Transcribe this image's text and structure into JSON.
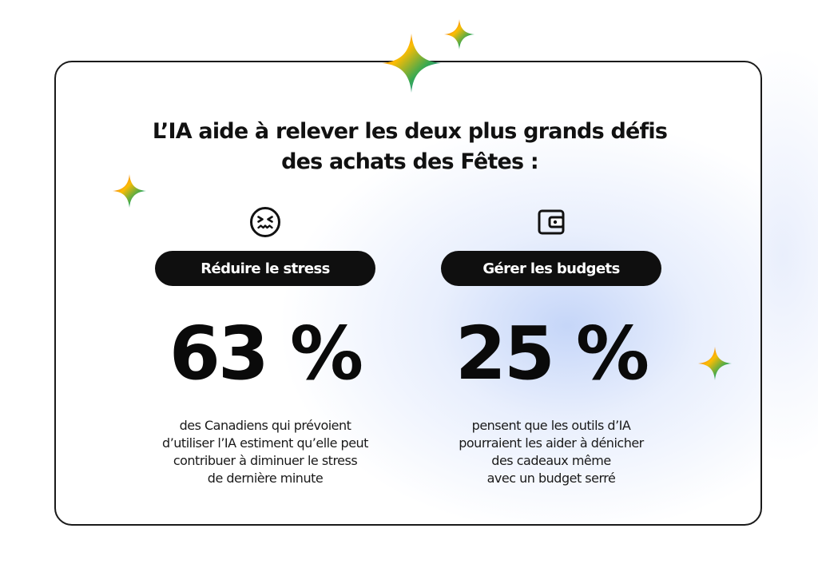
{
  "title": {
    "line1": "L’IA aide à relever les deux plus grands défis",
    "line2": "des achats des Fêtes :"
  },
  "stats": [
    {
      "icon": "stressed-face-icon",
      "label": "Réduire le stress",
      "value": "63 %",
      "description": [
        "des Canadiens qui prévoient",
        "d’utiliser l’IA estiment qu’elle peut",
        "contribuer à diminuer le stress",
        "de dernière minute"
      ]
    },
    {
      "icon": "wallet-icon",
      "label": "Gérer les budgets",
      "value": "25 %",
      "description": [
        "pensent que les outils d’IA",
        "pourraient les aider à dénicher",
        "des cadeaux même",
        "avec un budget serré"
      ]
    }
  ],
  "decorations": {
    "sparkle_icon": "gemini-sparkle-icon",
    "sparkle_colors": [
      "#4285F4",
      "#EA4335",
      "#FBBC04",
      "#34A853"
    ]
  },
  "colors": {
    "pill_background": "#0f0f0f",
    "pill_text": "#ffffff",
    "card_border": "#1a1a1a",
    "glow": "#b2c8f6"
  }
}
